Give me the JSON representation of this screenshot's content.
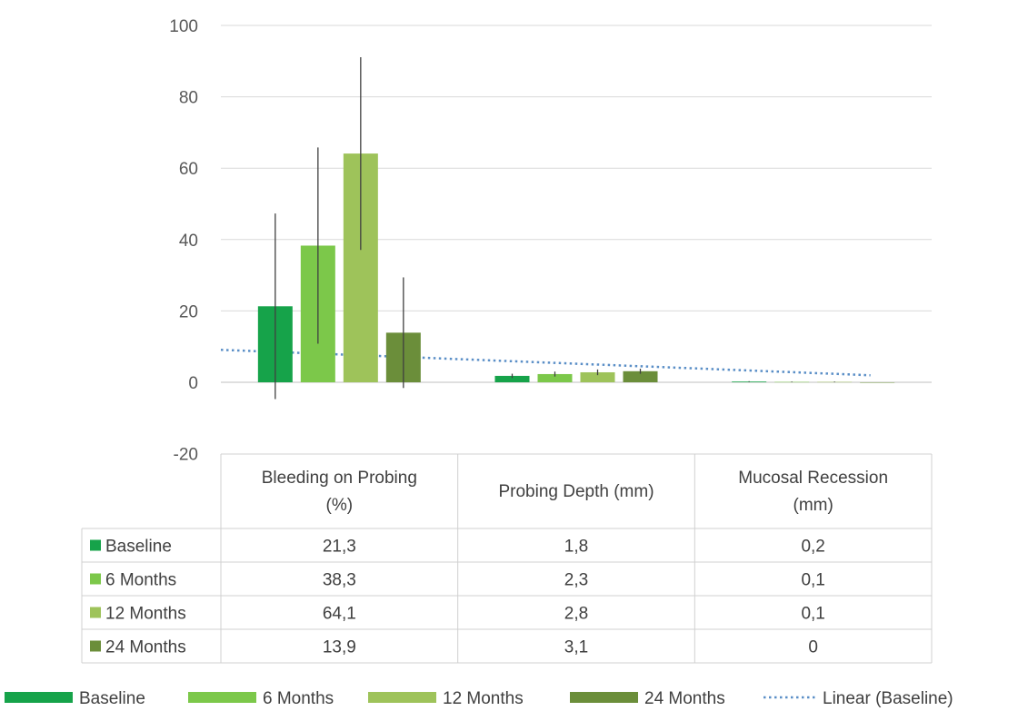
{
  "chart_data": {
    "type": "bar",
    "categories": [
      "Bleeding on Probing (%)",
      "Probing Depth (mm)",
      "Mucosal Recession (mm)"
    ],
    "category_lines": [
      [
        "Bleeding on Probing",
        "(%)"
      ],
      [
        "Probing Depth (mm)"
      ],
      [
        "Mucosal Recession",
        "(mm)"
      ]
    ],
    "series": [
      {
        "name": "Baseline",
        "color": "#16a34a",
        "values": [
          21.3,
          1.8,
          0.2
        ],
        "labels": [
          "21,3",
          "1,8",
          "0,2"
        ],
        "error": [
          26,
          0.6,
          0.1
        ]
      },
      {
        "name": "6 Months",
        "color": "#7cc84a",
        "values": [
          38.3,
          2.3,
          0.1
        ],
        "labels": [
          "38,3",
          "2,3",
          "0,1"
        ],
        "error": [
          27.5,
          0.7,
          0.1
        ]
      },
      {
        "name": "12 Months",
        "color": "#9ec35a",
        "values": [
          64.1,
          2.8,
          0.1
        ],
        "labels": [
          "64,1",
          "2,8",
          "0,1"
        ],
        "error": [
          27,
          0.8,
          0.1
        ]
      },
      {
        "name": "24 Months",
        "color": "#6b8e3a",
        "values": [
          13.9,
          3.1,
          0
        ],
        "labels": [
          "13,9",
          "3,1",
          "0"
        ],
        "error": [
          15.5,
          0.7,
          0
        ]
      }
    ],
    "trendline": {
      "name": "Linear (Baseline)",
      "color": "#5b8fc7",
      "x": [
        0,
        1,
        2
      ],
      "y": [
        7.8,
        5.1,
        2.6
      ]
    },
    "ylim": [
      -20,
      100
    ],
    "yticks": [
      -20,
      0,
      20,
      40,
      60,
      80,
      100
    ],
    "title": "",
    "xlabel": "",
    "ylabel": "",
    "grid": true,
    "legend": "bottom",
    "data_table": true
  }
}
